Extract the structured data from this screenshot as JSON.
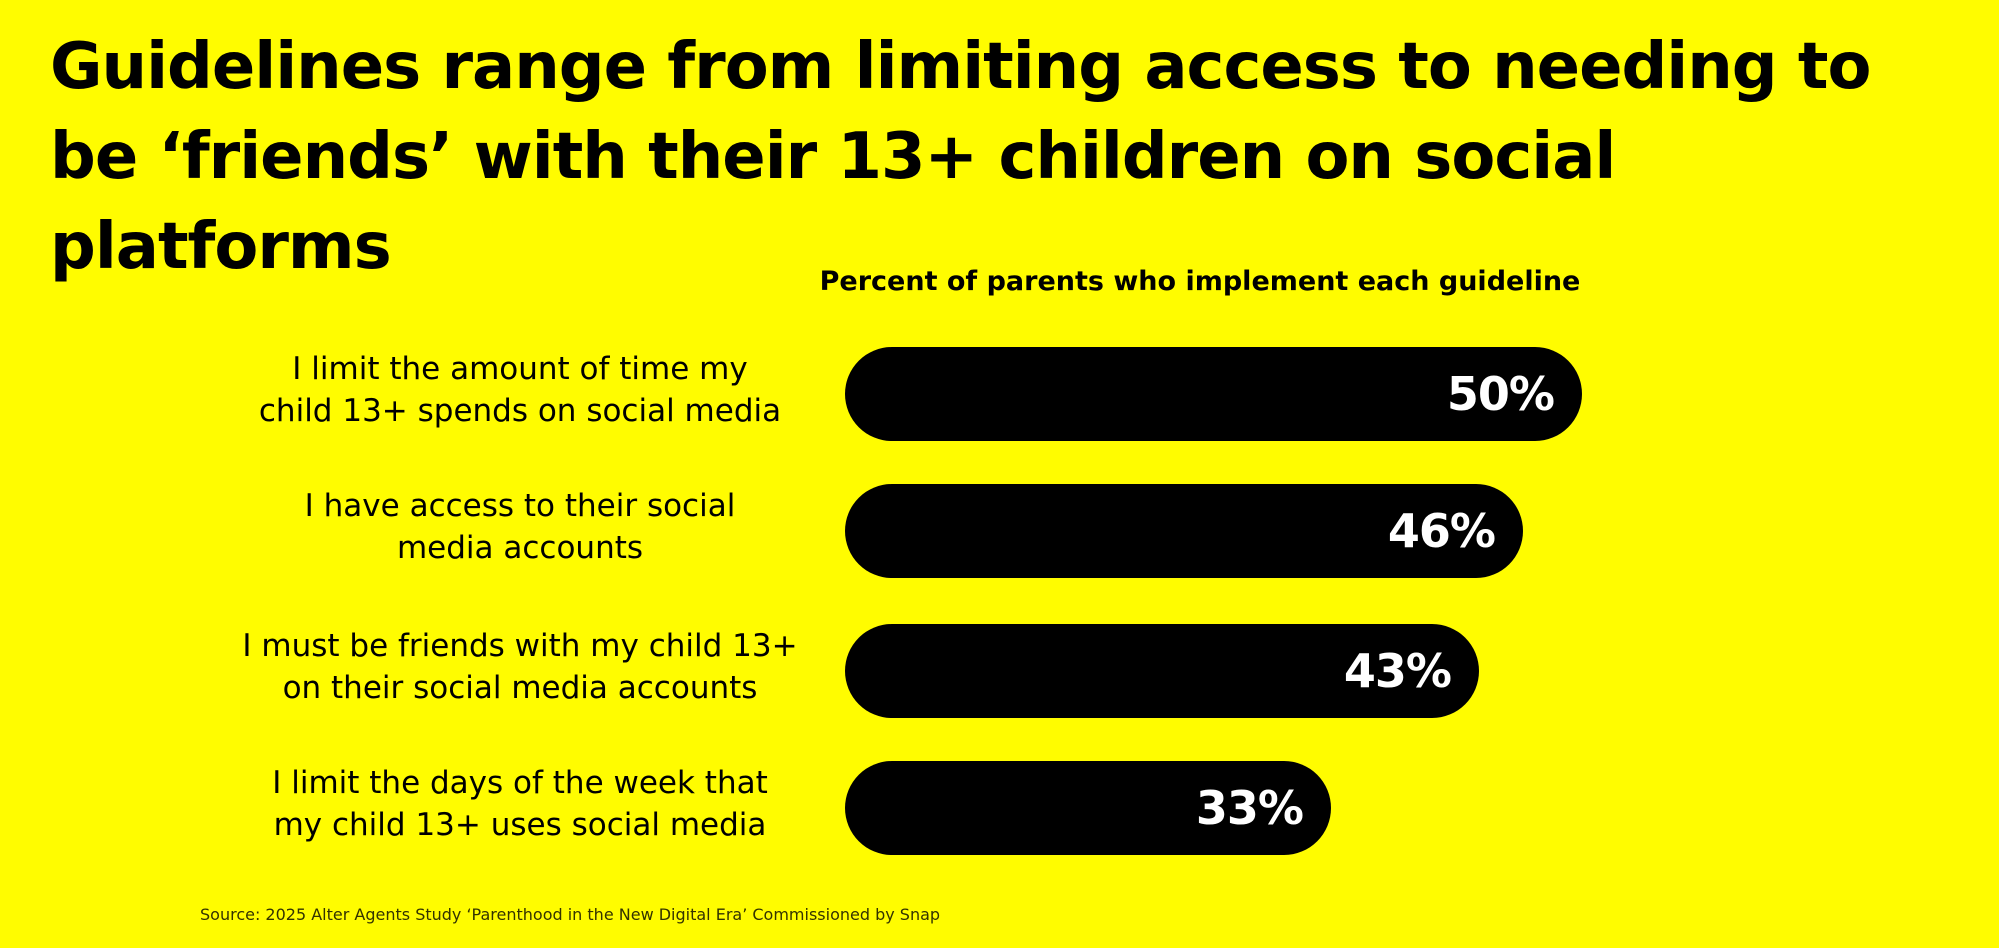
{
  "title": "Guidelines range from limiting access to needing to be ‘friends’ with their 13+ children on social platforms",
  "source": "Source: 2025 Alter Agents Study ‘Parenthood in the New Digital Era’ Commissioned by Snap",
  "colors": {
    "background": "#FFFC00",
    "bar": "#000000",
    "bar_text": "#FFFFFF",
    "text": "#000000"
  },
  "chart_data": {
    "type": "bar",
    "orientation": "horizontal",
    "title": "Percent of parents who implement each guideline",
    "categories": [
      "I limit the amount of time my\nchild 13+ spends on social media",
      "I have access to their social\nmedia accounts",
      "I must be friends with my child 13+\non their social media accounts",
      "I limit the days of the week that\nmy child 13+ uses social media"
    ],
    "values": [
      50,
      46,
      43,
      33
    ],
    "value_labels": [
      "50%",
      "46%",
      "43%",
      "33%"
    ],
    "xlim": [
      0,
      100
    ],
    "grid": false,
    "legend": "none"
  }
}
